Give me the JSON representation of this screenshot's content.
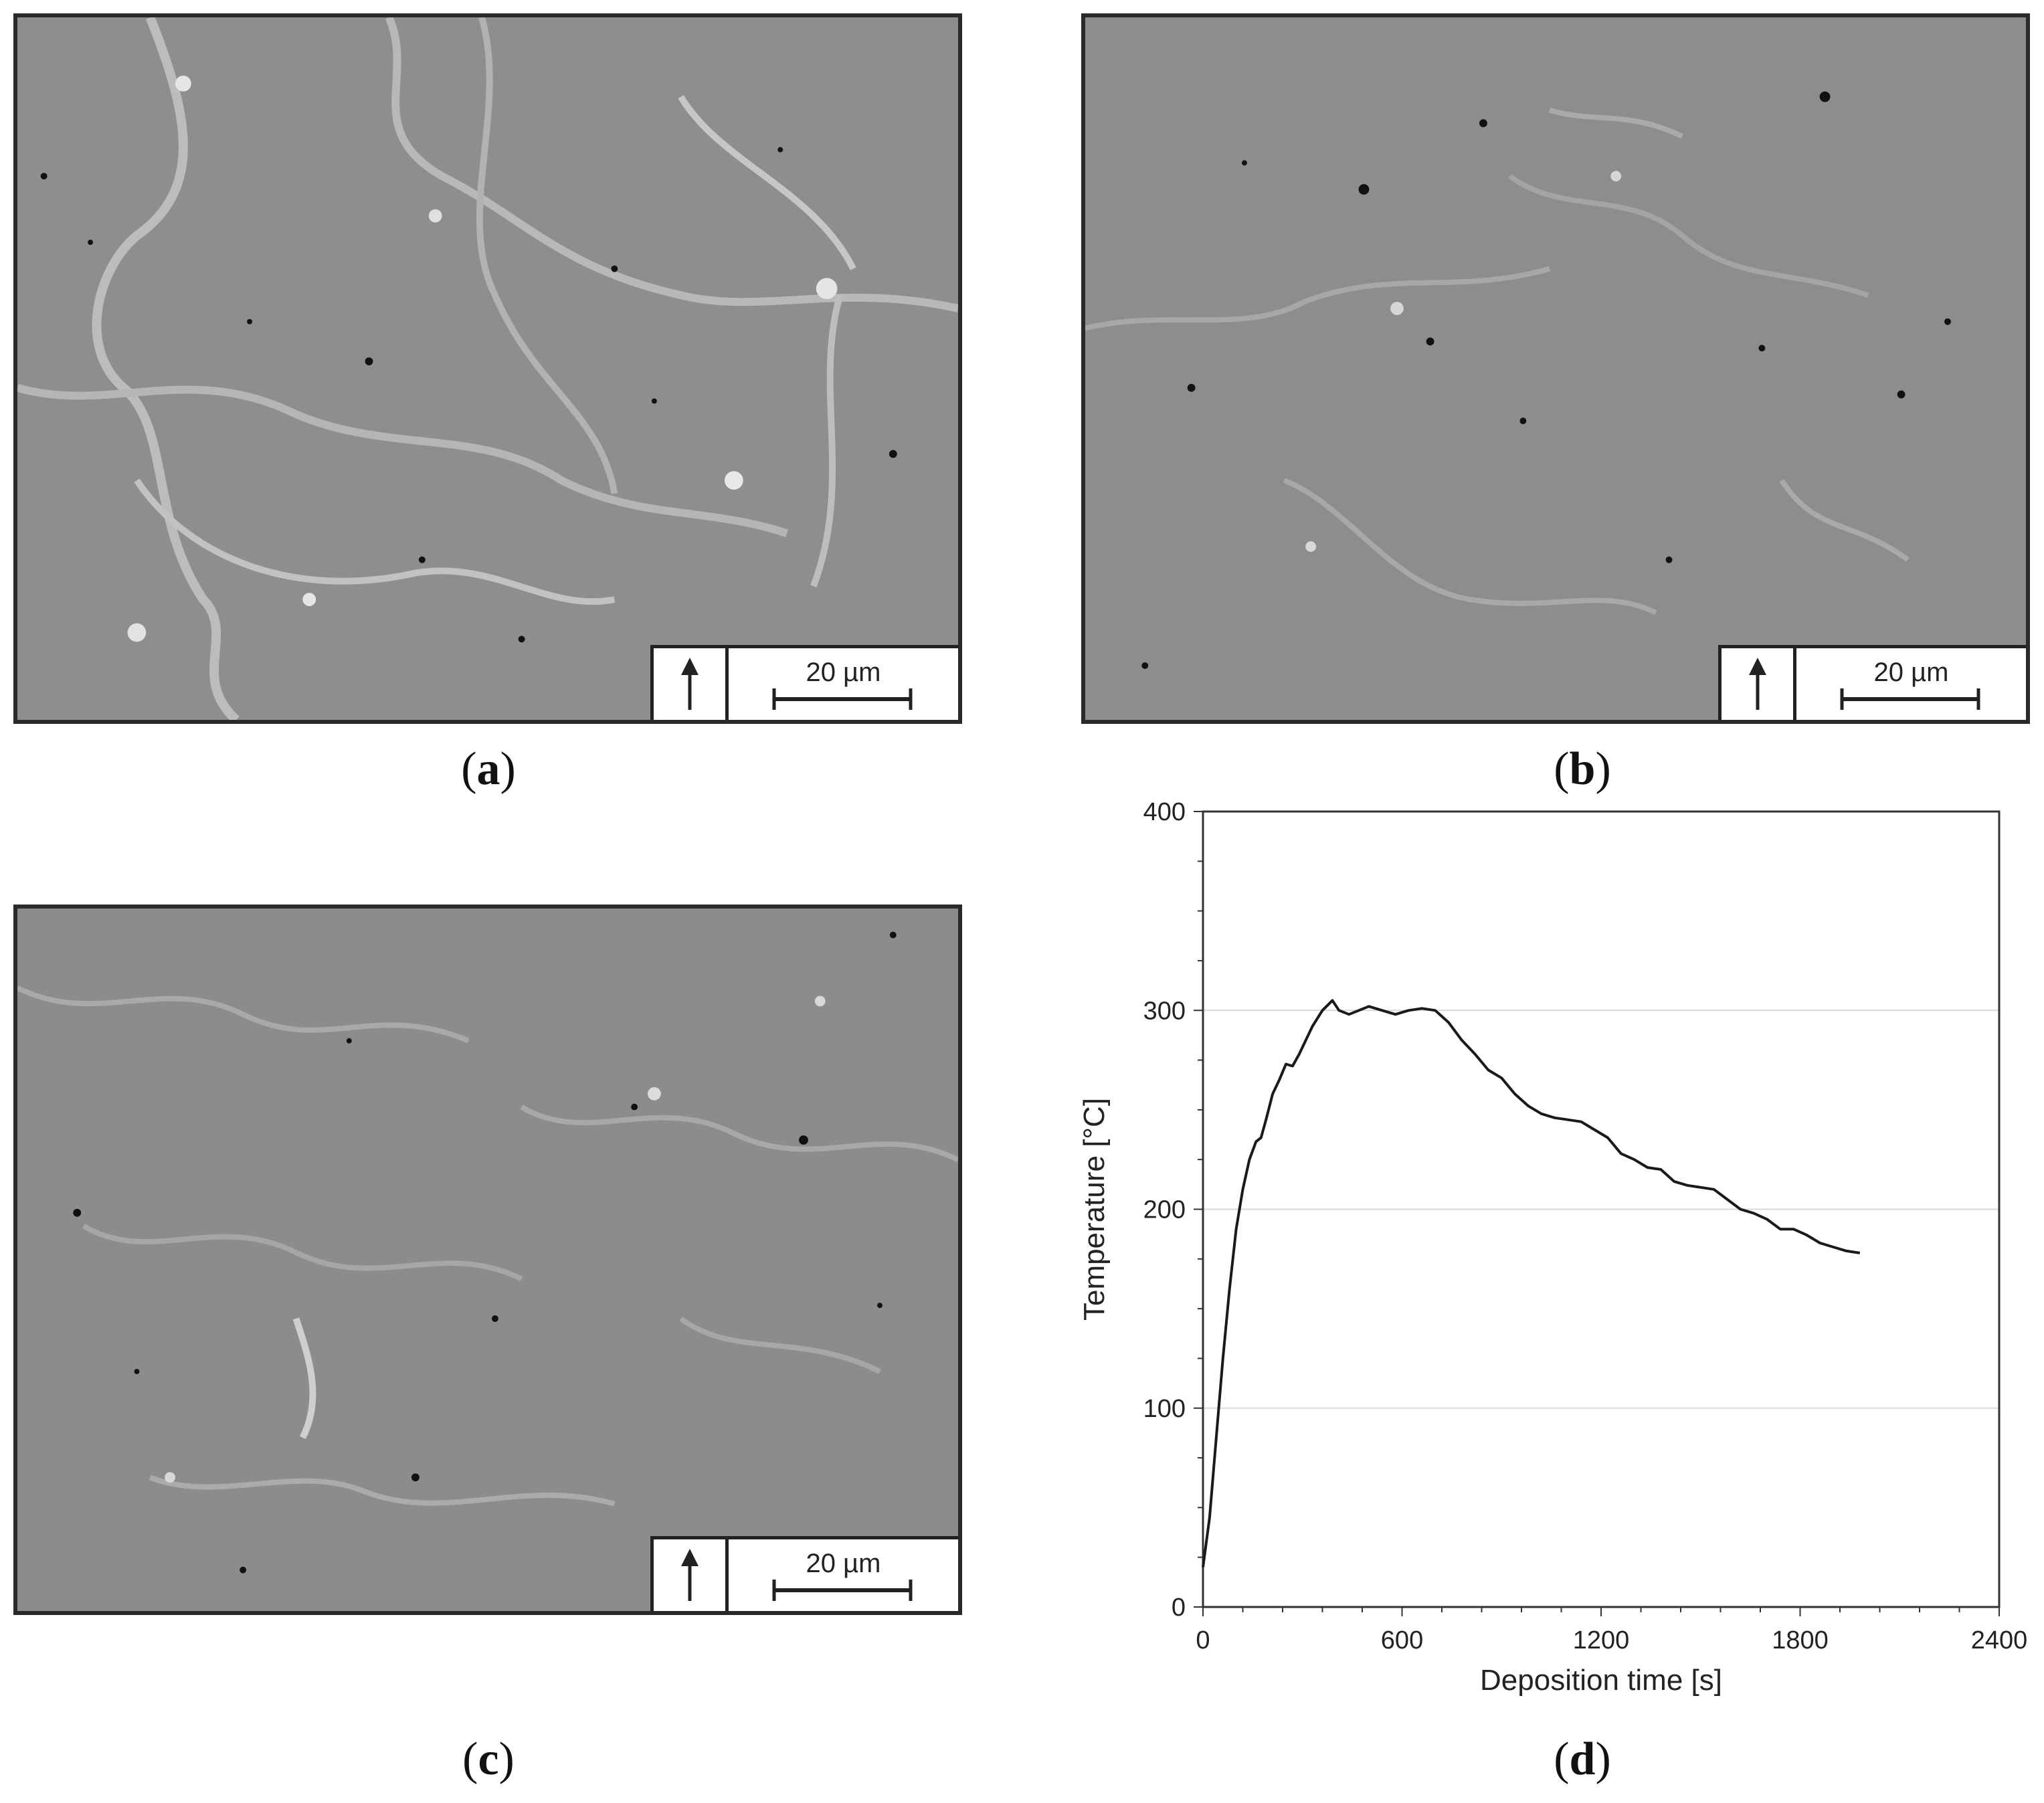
{
  "panels": {
    "a": {
      "label_open": "(",
      "label_letter": "a",
      "label_close": ")",
      "scale_text": "20 µm",
      "direction": "up-arrow-icon"
    },
    "b": {
      "label_open": "(",
      "label_letter": "b",
      "label_close": ")",
      "scale_text": "20 µm",
      "direction": "up-arrow-icon"
    },
    "c": {
      "label_open": "(",
      "label_letter": "c",
      "label_close": ")",
      "scale_text": "20 µm",
      "direction": "up-arrow-icon"
    },
    "d": {
      "label_open": "(",
      "label_letter": "d",
      "label_close": ")"
    }
  },
  "colors": {
    "micrograph_bg": "#8f8f8f",
    "line": "#1a1a1a",
    "grid": "#d9d9d9"
  },
  "chart_data": {
    "type": "line",
    "title": "",
    "xlabel": "Deposition time [s]",
    "ylabel": "Temperature [°C]",
    "xlim": [
      0,
      2400
    ],
    "ylim": [
      0,
      400
    ],
    "xticks": [
      0,
      600,
      1200,
      1800,
      2400
    ],
    "yticks": [
      0,
      100,
      200,
      300,
      400
    ],
    "grid": "horizontal",
    "series": [
      {
        "x": [
          0,
          20,
          40,
          60,
          80,
          100,
          120,
          140,
          160,
          175,
          190,
          210,
          230,
          250,
          270,
          290,
          310,
          330,
          360,
          390,
          410,
          440,
          470,
          500,
          540,
          580,
          620,
          660,
          700,
          740,
          780,
          820,
          860,
          900,
          940,
          980,
          1020,
          1060,
          1100,
          1140,
          1180,
          1220,
          1260,
          1300,
          1340,
          1380,
          1420,
          1460,
          1500,
          1540,
          1580,
          1620,
          1660,
          1700,
          1740,
          1780,
          1820,
          1860,
          1900,
          1940,
          1980
        ],
        "y": [
          20,
          45,
          85,
          125,
          160,
          190,
          210,
          225,
          234,
          236,
          245,
          258,
          265,
          273,
          272,
          278,
          285,
          292,
          300,
          305,
          300,
          298,
          300,
          302,
          300,
          298,
          300,
          301,
          300,
          294,
          285,
          278,
          270,
          266,
          258,
          252,
          248,
          246,
          245,
          244,
          240,
          236,
          228,
          225,
          221,
          220,
          214,
          212,
          211,
          210,
          205,
          200,
          198,
          195,
          190,
          190,
          187,
          183,
          181,
          179,
          178
        ]
      }
    ]
  }
}
